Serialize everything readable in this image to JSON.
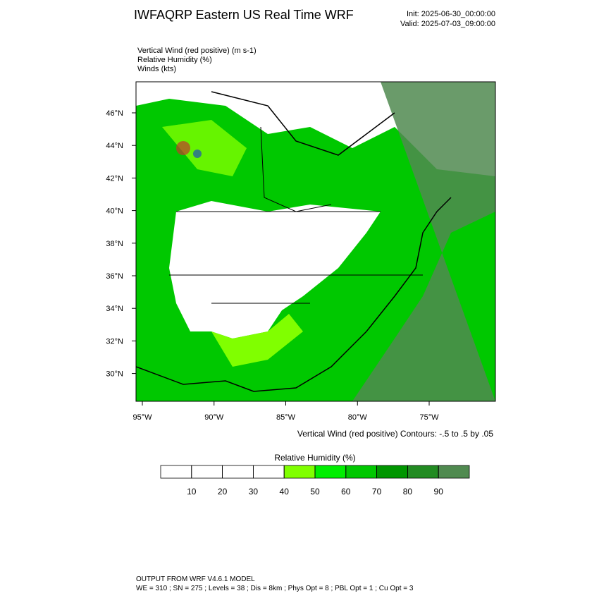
{
  "header": {
    "title": "IWFAQRP Eastern US Real Time WRF",
    "init": "Init: 2025-06-30_00:00:00",
    "valid": "Valid: 2025-07-03_09:00:00"
  },
  "fields": [
    "Vertical Wind (red positive)   (m s-1)",
    "Relative Humidity   (%)",
    "Winds   (kts)"
  ],
  "map": {
    "lat_ticks": [
      {
        "value": 46,
        "label": "46°N"
      },
      {
        "value": 44,
        "label": "44°N"
      },
      {
        "value": 42,
        "label": "42°N"
      },
      {
        "value": 40,
        "label": "40°N"
      },
      {
        "value": 38,
        "label": "38°N"
      },
      {
        "value": 36,
        "label": "36°N"
      },
      {
        "value": 34,
        "label": "34°N"
      },
      {
        "value": 32,
        "label": "32°N"
      },
      {
        "value": 30,
        "label": "30°N"
      }
    ],
    "lon_ticks": [
      {
        "value": -95,
        "label": "95°W"
      },
      {
        "value": -90,
        "label": "90°W"
      },
      {
        "value": -85,
        "label": "85°W"
      },
      {
        "value": -80,
        "label": "80°W"
      },
      {
        "value": -75,
        "label": "75°W"
      }
    ],
    "contour_note": "Vertical Wind (red positive) Contours: -.5 to .5 by .05"
  },
  "colorbar": {
    "title": "Relative Humidity  (%)",
    "range": [
      0,
      100
    ],
    "ticks": [
      10,
      20,
      30,
      40,
      50,
      60,
      70,
      80,
      90
    ],
    "colors": [
      "#ffffff",
      "#ffffff",
      "#ffffff",
      "#ffffff",
      "#80ff00",
      "#00ee00",
      "#00c800",
      "#009600",
      "#228b22",
      "#508a50"
    ]
  },
  "footer": {
    "line1": "OUTPUT FROM WRF V4.6.1 MODEL",
    "line2": "WE = 310 ; SN = 275 ; Levels = 38 ; Dis = 8km ; Phys Opt = 8 ; PBL Opt = 1 ; Cu Opt = 3"
  }
}
